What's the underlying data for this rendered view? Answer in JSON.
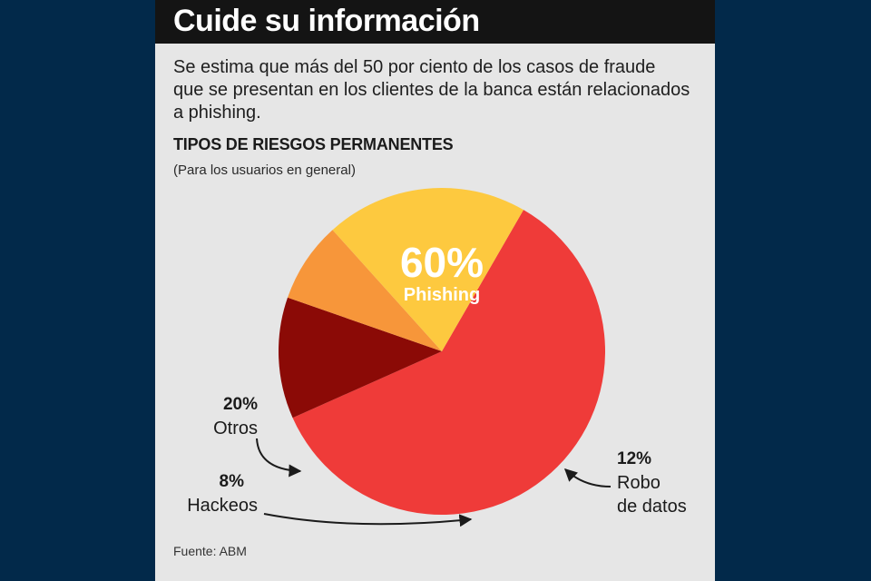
{
  "header": {
    "title": "Cuide su información",
    "intro": "Se estima que más del 50 por ciento de los casos de fraude que se presentan en los clientes de la banca están relacionados a phishing."
  },
  "colors": {
    "background": "#02294a",
    "panel": "#e6e6e6",
    "title_bar": "#141414",
    "phishing": "#ef3b39",
    "robo": "#8b0a06",
    "hackeos": "#f7963a",
    "otros": "#fdc93f"
  },
  "chart_data": {
    "type": "pie",
    "title": "TIPOS DE RIESGOS PERMANENTES",
    "subtitle": "(Para los usuarios en general)",
    "slices": [
      {
        "label": "Phishing",
        "value": 60,
        "display": "60%",
        "color": "#ef3b39"
      },
      {
        "label": "Robo de datos",
        "value": 12,
        "display": "12%",
        "color": "#8b0a06"
      },
      {
        "label": "Hackeos",
        "value": 8,
        "display": "8%",
        "color": "#f7963a"
      },
      {
        "label": "Otros",
        "value": 20,
        "display": "20%",
        "color": "#fdc93f"
      }
    ],
    "labels": {
      "phishing_pct": "60%",
      "phishing_name": "Phishing",
      "robo_pct": "12%",
      "robo_name_1": "Robo",
      "robo_name_2": "de datos",
      "hackeos_pct": "8%",
      "hackeos_name": "Hackeos",
      "otros_pct": "20%",
      "otros_name": "Otros"
    },
    "source": "Fuente: ABM"
  }
}
